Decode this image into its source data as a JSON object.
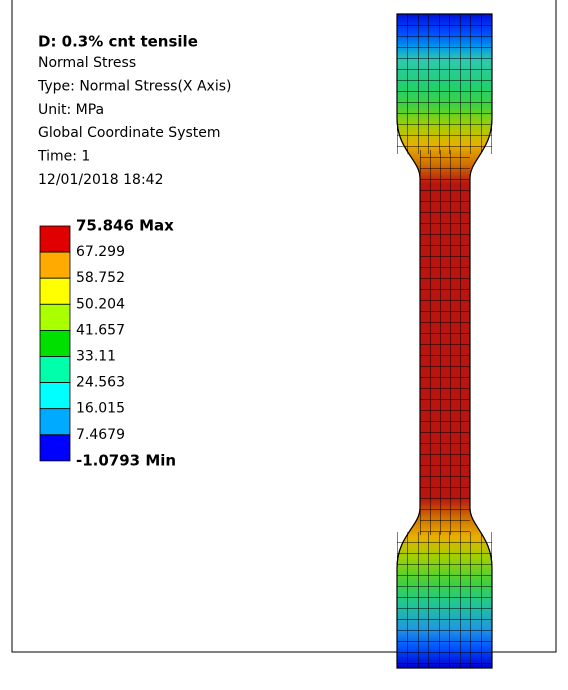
{
  "header": {
    "title": "D: 0.3% cnt tensile",
    "lines": [
      "Normal Stress",
      "Type: Normal Stress(X Axis)",
      "Unit: MPa",
      "Global Coordinate System",
      "Time: 1",
      "12/01/2018 18:42"
    ]
  },
  "legend": {
    "labels": [
      "75.846 Max",
      "67.299",
      "58.752",
      "50.204",
      "41.657",
      "33.11",
      "24.563",
      "16.015",
      "7.4679",
      "-1.0793 Min"
    ],
    "colors": [
      "#e00000",
      "#ffaa00",
      "#ffff00",
      "#aaff00",
      "#00e000",
      "#00ffaa",
      "#00ffff",
      "#00aaff",
      "#0000ff"
    ]
  }
}
